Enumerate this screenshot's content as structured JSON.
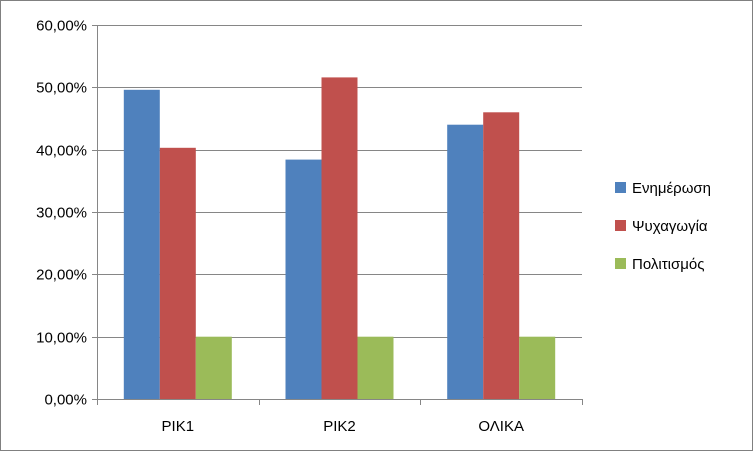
{
  "chart_data": {
    "type": "bar",
    "title": "",
    "xlabel": "",
    "ylabel": "",
    "categories": [
      "ΡΙΚ1",
      "ΡΙΚ2",
      "ΟΛΙΚΑ"
    ],
    "series": [
      {
        "name": "Ενημέρωση",
        "color": "#4F81BD",
        "values": [
          49.6,
          38.4,
          44.0
        ]
      },
      {
        "name": "Ψυχαγωγία",
        "color": "#C0504D",
        "values": [
          40.3,
          51.6,
          46.0
        ]
      },
      {
        "name": "Πολιτισμός",
        "color": "#9BBB59",
        "values": [
          10.0,
          10.0,
          10.0
        ]
      }
    ],
    "ylim": [
      0,
      60
    ],
    "yticks": [
      0,
      10,
      20,
      30,
      40,
      50,
      60
    ],
    "ytick_labels": [
      "0,00%",
      "10,00%",
      "20,00%",
      "30,00%",
      "40,00%",
      "50,00%",
      "60,00%"
    ],
    "grid": true,
    "legend_position": "right"
  }
}
